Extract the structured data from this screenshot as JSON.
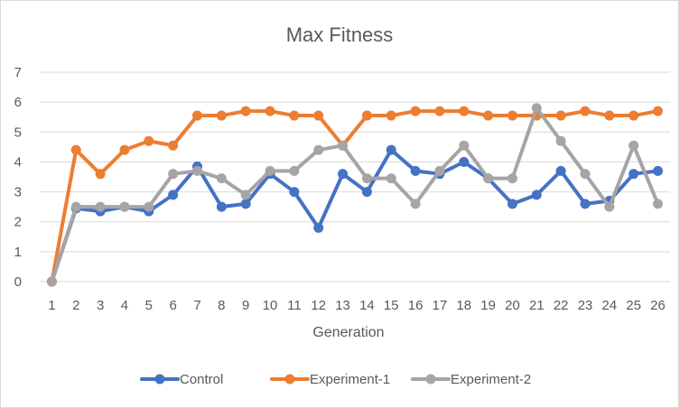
{
  "chart_data": {
    "type": "line",
    "title": "Max Fitness",
    "xlabel": "Generation",
    "ylabel": "",
    "ylim": [
      0,
      7
    ],
    "yticks": [
      0,
      1,
      2,
      3,
      4,
      5,
      6,
      7
    ],
    "grid": "horizontal",
    "legend": "bottom",
    "categories": [
      "1",
      "2",
      "3",
      "4",
      "5",
      "6",
      "7",
      "8",
      "9",
      "10",
      "11",
      "12",
      "13",
      "14",
      "15",
      "16",
      "17",
      "18",
      "19",
      "20",
      "21",
      "22",
      "23",
      "24",
      "25",
      "26"
    ],
    "series": [
      {
        "name": "Control",
        "color": "#4472c4",
        "values": [
          0,
          2.45,
          2.35,
          2.5,
          2.35,
          2.9,
          3.85,
          2.5,
          2.6,
          3.6,
          3.0,
          1.8,
          3.6,
          3.0,
          4.4,
          3.7,
          3.6,
          4.0,
          3.45,
          2.6,
          2.9,
          3.7,
          2.6,
          2.7,
          3.6,
          3.7
        ]
      },
      {
        "name": "Experiment-1",
        "color": "#ed7d31",
        "values": [
          0,
          4.4,
          3.6,
          4.4,
          4.7,
          4.55,
          5.55,
          5.55,
          5.7,
          5.7,
          5.55,
          5.55,
          4.55,
          5.55,
          5.55,
          5.7,
          5.7,
          5.7,
          5.55,
          5.55,
          5.55,
          5.55,
          5.7,
          5.55,
          5.55,
          5.7
        ]
      },
      {
        "name": "Experiment-2",
        "color": "#a5a5a5",
        "values": [
          0,
          2.5,
          2.5,
          2.5,
          2.5,
          3.6,
          3.7,
          3.45,
          2.9,
          3.7,
          3.7,
          4.4,
          4.55,
          3.45,
          3.45,
          2.6,
          3.7,
          4.55,
          3.45,
          3.45,
          5.8,
          4.7,
          3.6,
          2.5,
          4.55,
          2.6
        ]
      }
    ]
  }
}
